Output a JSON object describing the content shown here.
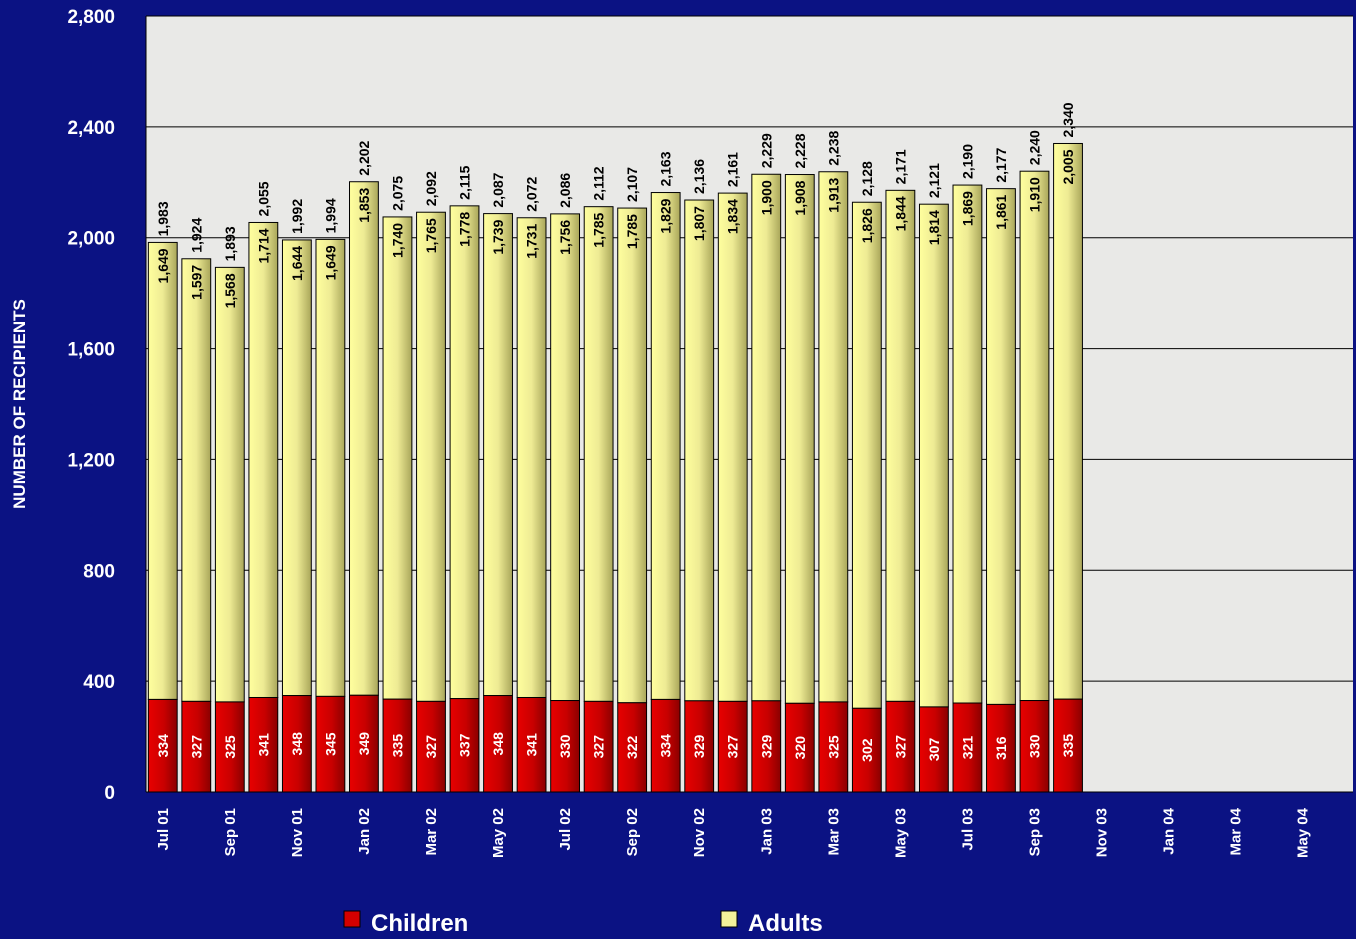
{
  "chart_data": {
    "type": "bar",
    "stacked": true,
    "ylabel": "NUMBER OF RECIPIENTS",
    "ylim": [
      0,
      2800
    ],
    "yticks": [
      "0",
      "400",
      "800",
      "1,200",
      "1,600",
      "2,000",
      "2,400",
      "2,800"
    ],
    "ytick_values": [
      0,
      400,
      800,
      1200,
      1600,
      2000,
      2400,
      2800
    ],
    "grid": true,
    "legend_position": "bottom",
    "tick_labels": [
      "Jul 01",
      "Sep 01",
      "Nov 01",
      "Jan 02",
      "Mar 02",
      "May 02",
      "Jul 02",
      "Sep 02",
      "Nov 02",
      "Jan 03",
      "Mar 03",
      "May 03",
      "Jul 03",
      "Sep 03",
      "Nov 03",
      "Jan 04",
      "Mar 04",
      "May 04"
    ],
    "slot_count": 36,
    "series": [
      {
        "name": "Children",
        "color": "#d40000",
        "values": [
          334,
          327,
          325,
          341,
          348,
          345,
          349,
          335,
          327,
          337,
          348,
          341,
          330,
          327,
          322,
          334,
          329,
          327,
          329,
          320,
          325,
          302,
          327,
          307,
          321,
          316,
          330,
          335
        ],
        "labels": [
          "334",
          "327",
          "325",
          "341",
          "348",
          "345",
          "349",
          "335",
          "327",
          "337",
          "348",
          "341",
          "330",
          "327",
          "322",
          "334",
          "329",
          "327",
          "329",
          "320",
          "325",
          "302",
          "327",
          "307",
          "321",
          "316",
          "330",
          "335"
        ]
      },
      {
        "name": "Adults",
        "color": "#f4f19a",
        "values": [
          1649,
          1597,
          1568,
          1714,
          1644,
          1649,
          1853,
          1740,
          1765,
          1778,
          1739,
          1731,
          1756,
          1785,
          1785,
          1829,
          1807,
          1834,
          1900,
          1908,
          1913,
          1826,
          1844,
          1814,
          1869,
          1861,
          1910,
          2005
        ],
        "labels": [
          "1,649",
          "1,597",
          "1,568",
          "1,714",
          "1,644",
          "1,649",
          "1,853",
          "1,740",
          "1,765",
          "1,778",
          "1,739",
          "1,731",
          "1,756",
          "1,785",
          "1,785",
          "1,829",
          "1,807",
          "1,834",
          "1,900",
          "1,908",
          "1,913",
          "1,826",
          "1,844",
          "1,814",
          "1,869",
          "1,861",
          "1,910",
          "2,005"
        ]
      }
    ],
    "totals": [
      "1,983",
      "1,924",
      "1,893",
      "2,055",
      "1,992",
      "1,994",
      "2,202",
      "2,075",
      "2,092",
      "2,115",
      "2,087",
      "2,072",
      "2,086",
      "2,112",
      "2,107",
      "2,163",
      "2,136",
      "2,161",
      "2,229",
      "2,228",
      "2,238",
      "2,128",
      "2,171",
      "2,121",
      "2,190",
      "2,177",
      "2,240",
      "2,340"
    ],
    "total_values": [
      1983,
      1924,
      1893,
      2055,
      1992,
      1994,
      2202,
      2075,
      2092,
      2115,
      2087,
      2072,
      2086,
      2112,
      2107,
      2163,
      2136,
      2161,
      2229,
      2228,
      2238,
      2128,
      2171,
      2121,
      2190,
      2177,
      2240,
      2340
    ]
  },
  "legend": {
    "children_label": "Children",
    "adults_label": "Adults"
  }
}
